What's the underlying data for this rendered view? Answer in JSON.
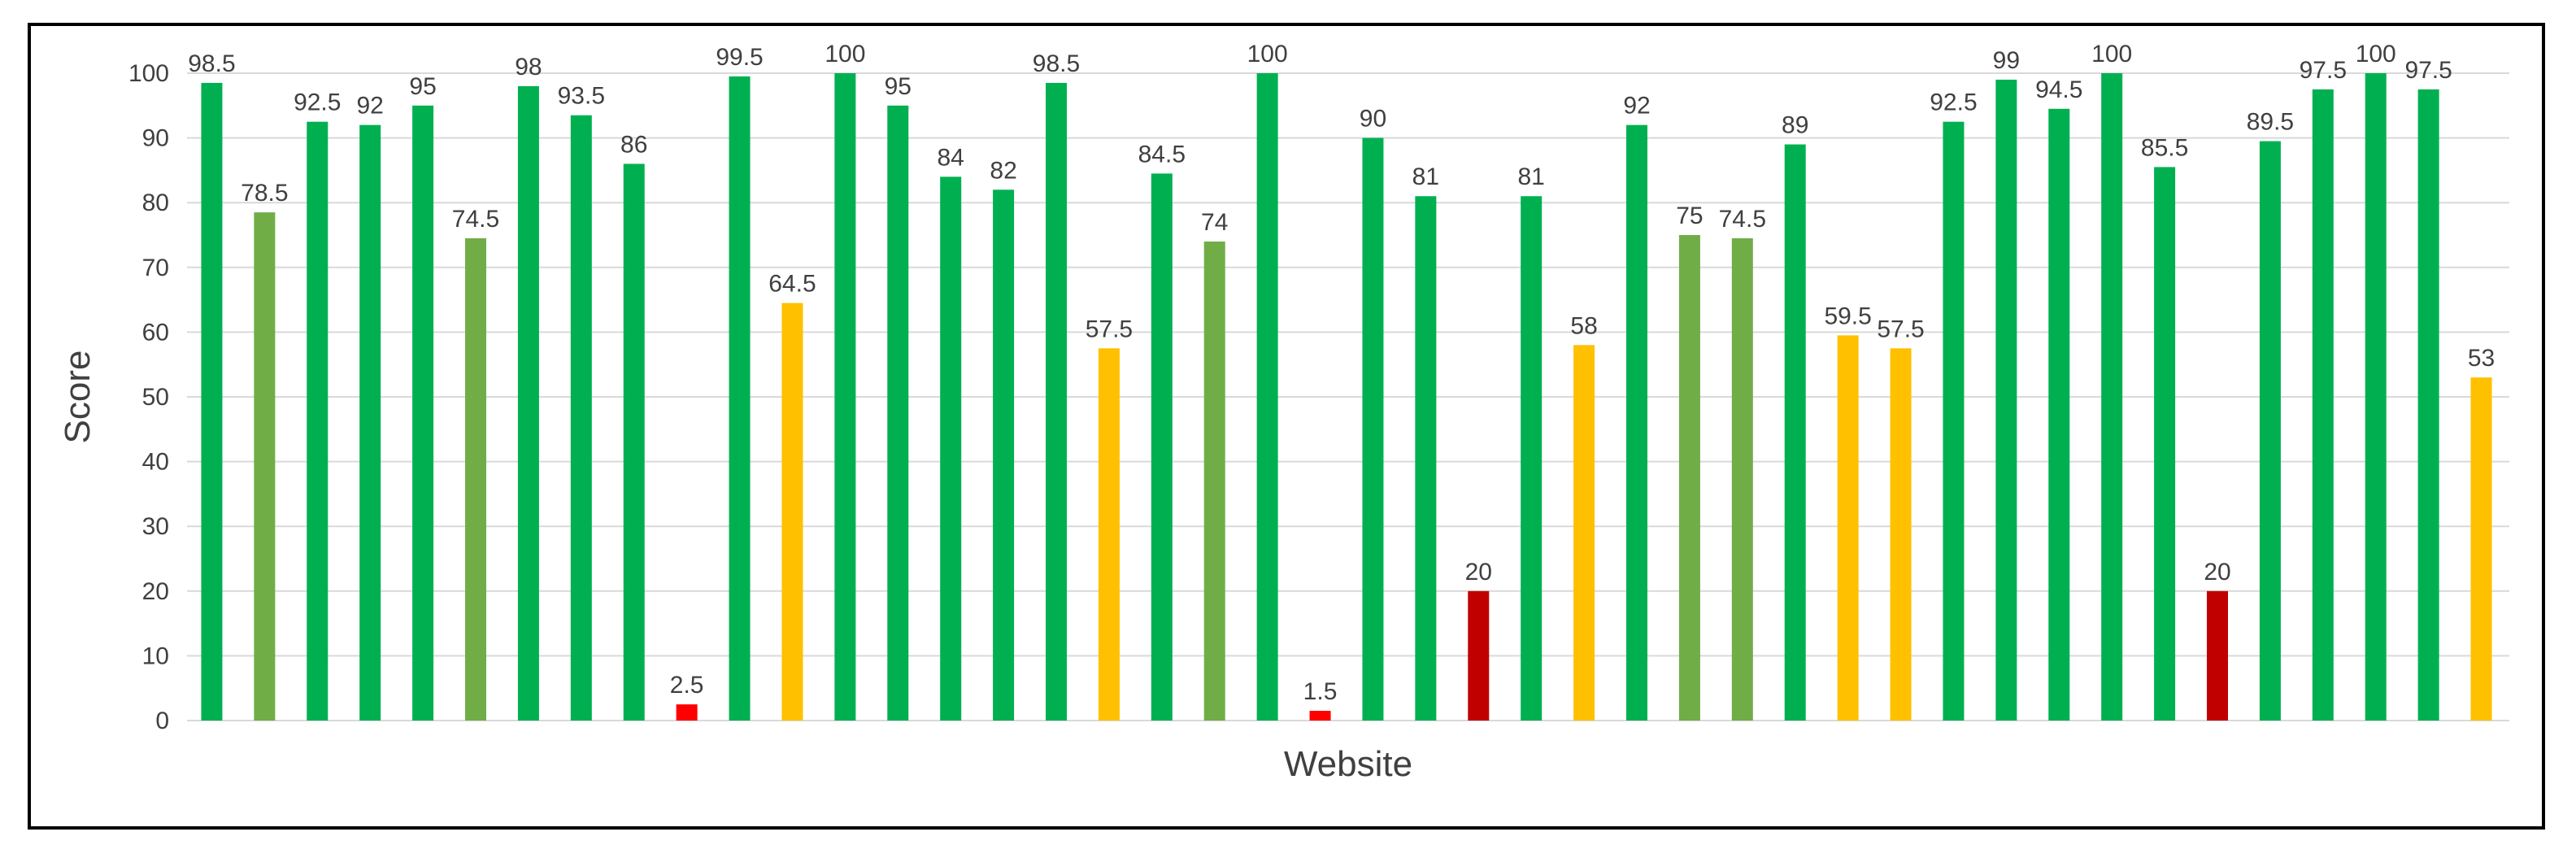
{
  "chart_data": {
    "type": "bar",
    "title": "",
    "xlabel": "Website",
    "ylabel": "Score",
    "ylim": [
      0,
      100
    ],
    "yticks": [
      0,
      10,
      20,
      30,
      40,
      50,
      60,
      70,
      80,
      90,
      100
    ],
    "grid": true,
    "legend": "none",
    "values": [
      98.5,
      78.5,
      92.5,
      92,
      95,
      74.5,
      98,
      93.5,
      86,
      2.5,
      99.5,
      64.5,
      100,
      95,
      84,
      82,
      98.5,
      57.5,
      84.5,
      74,
      100,
      1.5,
      90,
      81,
      20,
      81,
      58,
      92,
      75,
      74.5,
      89,
      59.5,
      57.5,
      92.5,
      99,
      94.5,
      100,
      85.5,
      20,
      89.5,
      97.5,
      100,
      97.5,
      53
    ],
    "data_labels": [
      "98.5",
      "78.5",
      "92.5",
      "92",
      "95",
      "74.5",
      "98",
      "93.5",
      "86",
      "2.5",
      "99.5",
      "64.5",
      "100",
      "95",
      "84",
      "82",
      "98.5",
      "57.5",
      "84.5",
      "74",
      "100",
      "1.5",
      "90",
      "81",
      "20",
      "81",
      "58",
      "92",
      "75",
      "74.5",
      "89",
      "59.5",
      "57.5",
      "92.5",
      "99",
      "94.5",
      "100",
      "85.5",
      "20",
      "89.5",
      "97.5",
      "100",
      "97.5",
      "53"
    ],
    "colors": {
      "dark_green": "#00B050",
      "light_green": "#70AD47",
      "amber": "#FFC000",
      "red": "#FF0000",
      "dark_red": "#C00000",
      "grid": "#D9D9D9",
      "text": "#404040"
    },
    "bar_color_keys": [
      "dark_green",
      "light_green",
      "dark_green",
      "dark_green",
      "dark_green",
      "light_green",
      "dark_green",
      "dark_green",
      "dark_green",
      "red",
      "dark_green",
      "amber",
      "dark_green",
      "dark_green",
      "dark_green",
      "dark_green",
      "dark_green",
      "amber",
      "dark_green",
      "light_green",
      "dark_green",
      "red",
      "dark_green",
      "dark_green",
      "dark_red",
      "dark_green",
      "amber",
      "dark_green",
      "light_green",
      "light_green",
      "dark_green",
      "amber",
      "amber",
      "dark_green",
      "dark_green",
      "dark_green",
      "dark_green",
      "dark_green",
      "dark_red",
      "dark_green",
      "dark_green",
      "dark_green",
      "dark_green",
      "amber"
    ]
  }
}
